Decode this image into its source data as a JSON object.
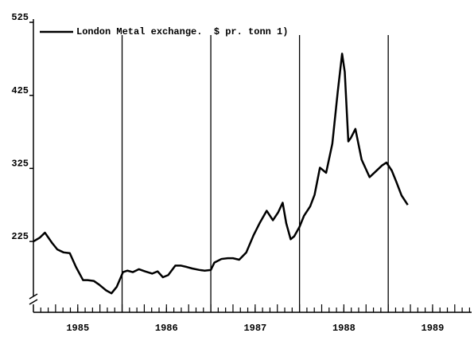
{
  "chart_data": {
    "type": "line",
    "series": [
      {
        "name": "London Metal exchange.  $ pr. tonn 1)",
        "color": "#000000",
        "x": [
          1985.0,
          1985.07,
          1985.13,
          1985.21,
          1985.27,
          1985.34,
          1985.41,
          1985.48,
          1985.56,
          1985.61,
          1985.68,
          1985.74,
          1985.82,
          1985.88,
          1985.94,
          1986.01,
          1986.06,
          1986.12,
          1986.19,
          1986.26,
          1986.34,
          1986.4,
          1986.46,
          1986.52,
          1986.6,
          1986.66,
          1986.73,
          1986.79,
          1986.87,
          1986.93,
          1987.0,
          1987.04,
          1987.12,
          1987.19,
          1987.25,
          1987.32,
          1987.4,
          1987.48,
          1987.55,
          1987.63,
          1987.7,
          1987.76,
          1987.81,
          1987.85,
          1987.9,
          1987.94,
          1988.0,
          1988.05,
          1988.12,
          1988.17,
          1988.23,
          1988.3,
          1988.37,
          1988.43,
          1988.48,
          1988.51,
          1988.55,
          1988.58,
          1988.63,
          1988.7,
          1988.79,
          1988.86,
          1988.93,
          1988.98,
          1989.04,
          1989.09,
          1989.15,
          1989.22
        ],
        "values": [
          225,
          230,
          237,
          223,
          214,
          210,
          209,
          190,
          172,
          172,
          171,
          166,
          158,
          154,
          163,
          183,
          185,
          183,
          187,
          184,
          181,
          184,
          176,
          179,
          192,
          192,
          190,
          188,
          186,
          185,
          186,
          196,
          201,
          202,
          202,
          200,
          210,
          233,
          250,
          267,
          254,
          265,
          278,
          250,
          228,
          232,
          245,
          260,
          273,
          289,
          326,
          319,
          359,
          429,
          482,
          457,
          362,
          367,
          379,
          337,
          313,
          321,
          329,
          333,
          322,
          307,
          288,
          275
        ]
      }
    ],
    "xlim": [
      1985,
      1989.94
    ],
    "xticks": [
      {
        "value": 1985.5,
        "label": "1985"
      },
      {
        "value": 1986.5,
        "label": "1986"
      },
      {
        "value": 1987.5,
        "label": "1987"
      },
      {
        "value": 1988.5,
        "label": "1988"
      },
      {
        "value": 1989.5,
        "label": "1989"
      }
    ],
    "xgrid": [
      1986,
      1987,
      1988,
      1989
    ],
    "ylim": [
      128,
      525
    ],
    "yticks": [
      225,
      325,
      425,
      525
    ]
  }
}
